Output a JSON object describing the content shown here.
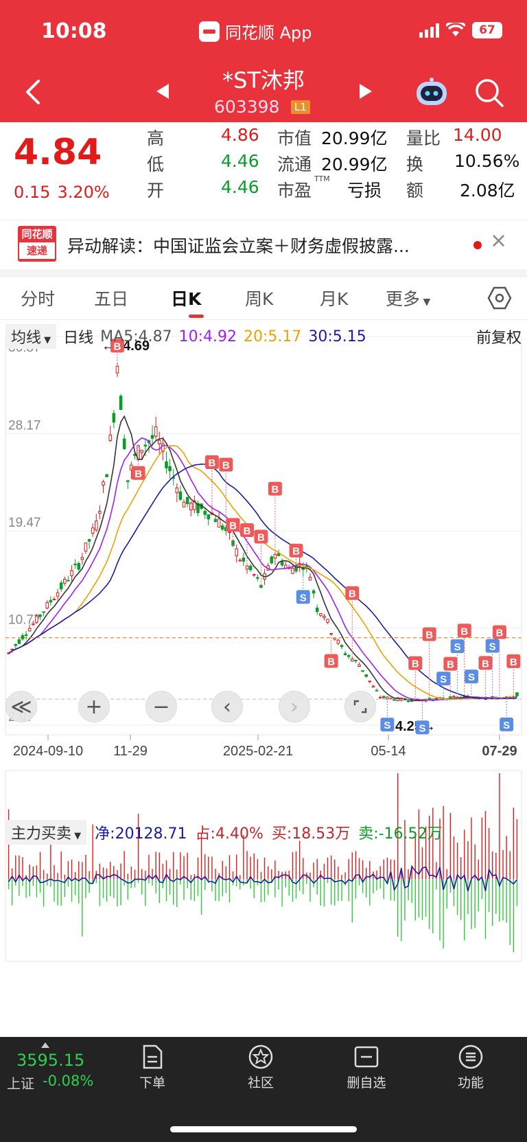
{
  "status": {
    "time": "10:08",
    "app": "同花顺 App",
    "battery": "67"
  },
  "stock": {
    "name": "*ST沐邦",
    "code": "603398",
    "level": "L1"
  },
  "quote": {
    "price": "4.84",
    "change": "0.15",
    "change_pct": "3.20%",
    "high_label": "高",
    "high": "4.86",
    "low_label": "低",
    "low": "4.46",
    "open_label": "开",
    "open": "4.46",
    "mktcap_label": "市值",
    "mktcap": "20.99亿",
    "float_label": "流通",
    "float": "20.99亿",
    "pe_label": "市盈",
    "pe_sup": "TTM",
    "pe": "亏损",
    "vr_label": "量比",
    "vr": "14.00",
    "turnover_label": "换",
    "turnover": "10.56%",
    "amount_label": "额",
    "amount": "2.08亿"
  },
  "news": {
    "logo_top": "同花顺",
    "logo_bottom": "速递",
    "text": "异动解读：中国证监会立案＋财务虚假披露...",
    "close": "×"
  },
  "tabs": [
    "分时",
    "五日",
    "日K",
    "周K",
    "月K",
    "更多"
  ],
  "active_tab": "日K",
  "ma": {
    "selector": "均线",
    "period": "日线",
    "ma5": "MA5:4.87",
    "ma10": "10:4.92",
    "ma20": "20:5.17",
    "ma30": "30:5.15",
    "adjust": "前复权"
  },
  "colors": {
    "ma5": "#333333",
    "ma10": "#a020f0",
    "ma20": "#f0a000",
    "ma30": "#1a1aa8",
    "up": "#e31a1a",
    "down": "#0a9d2a",
    "accent": "#e8323c"
  },
  "chart_data": {
    "type": "candlestick",
    "y_ticks": [
      "36.87",
      "28.17",
      "19.47",
      "10.77",
      "2.07"
    ],
    "ylim": [
      2.07,
      36.87
    ],
    "x_labels": [
      "2024-09-10",
      "11-29",
      "2025-02-21",
      "05-14",
      "07-29"
    ],
    "max_note": "←34.69",
    "min_note": "4.25→",
    "current_line": 9.9,
    "trend": [
      [
        0,
        8.5
      ],
      [
        8,
        11.5
      ],
      [
        14,
        14
      ],
      [
        20,
        16.5
      ],
      [
        25,
        20
      ],
      [
        28,
        25
      ],
      [
        30,
        30
      ],
      [
        31,
        34.5
      ],
      [
        32,
        31
      ],
      [
        34,
        24
      ],
      [
        36,
        26
      ],
      [
        38,
        27
      ],
      [
        42,
        28
      ],
      [
        46,
        25
      ],
      [
        50,
        22
      ],
      [
        54,
        21.5
      ],
      [
        58,
        21
      ],
      [
        62,
        19.5
      ],
      [
        66,
        17
      ],
      [
        70,
        15.5
      ],
      [
        72,
        14.5
      ],
      [
        76,
        17.5
      ],
      [
        80,
        16
      ],
      [
        84,
        16.5
      ],
      [
        86,
        15.5
      ],
      [
        88,
        12.5
      ],
      [
        90,
        12
      ],
      [
        92,
        10.5
      ],
      [
        96,
        8.5
      ],
      [
        100,
        7.5
      ],
      [
        104,
        5.5
      ],
      [
        106,
        4.6
      ],
      [
        110,
        4.4
      ],
      [
        116,
        4.3
      ],
      [
        122,
        4.4
      ],
      [
        126,
        4.5
      ],
      [
        132,
        4.6
      ],
      [
        138,
        4.5
      ],
      [
        144,
        4.5
      ],
      [
        145,
        4.84
      ]
    ],
    "indicator": {
      "selector": "主力买卖",
      "net": "净:20128.71",
      "share": "占:4.40%",
      "buy": "买:18.53万",
      "sell": "卖:-16.52万"
    }
  },
  "controls": {
    "rewind": "≪",
    "zoom_in": "+",
    "zoom_out": "−",
    "left": "‹",
    "right": "›"
  },
  "bottom": {
    "index_value": "3595.15",
    "index_name": "上证",
    "index_change": "-0.08%",
    "nav": [
      "下单",
      "社区",
      "删自选",
      "功能"
    ]
  }
}
